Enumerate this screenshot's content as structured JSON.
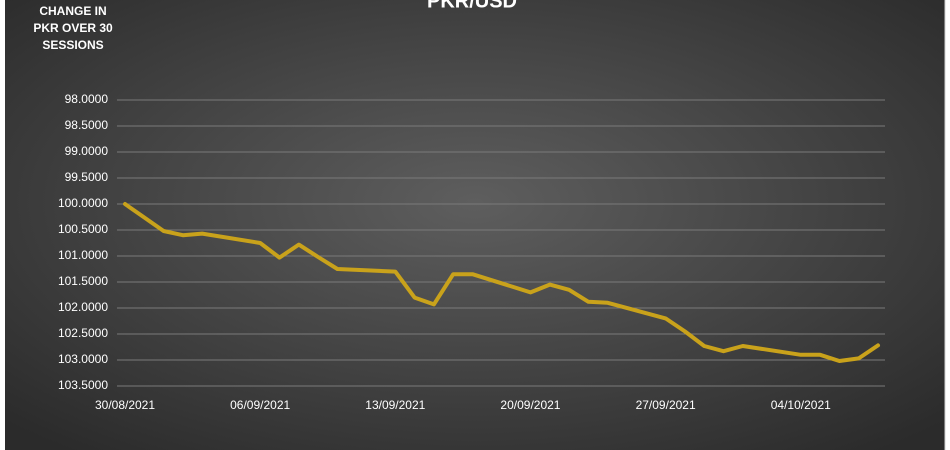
{
  "chart_data": {
    "type": "line",
    "title": "PKR/USD",
    "y_label": "CHANGE IN PKR OVER 30 SESSIONS",
    "x": [
      "30/08/2021",
      "31/08/2021",
      "01/09/2021",
      "02/09/2021",
      "03/09/2021",
      "06/09/2021",
      "07/09/2021",
      "08/09/2021",
      "09/09/2021",
      "10/09/2021",
      "13/09/2021",
      "14/09/2021",
      "15/09/2021",
      "16/09/2021",
      "17/09/2021",
      "20/09/2021",
      "21/09/2021",
      "22/09/2021",
      "23/09/2021",
      "24/09/2021",
      "27/09/2021",
      "28/09/2021",
      "29/09/2021",
      "30/09/2021",
      "01/10/2021",
      "04/10/2021",
      "05/10/2021",
      "06/10/2021",
      "07/10/2021",
      "08/10/2021"
    ],
    "values": [
      100.0,
      100.26,
      100.52,
      100.6,
      100.57,
      100.75,
      101.03,
      100.78,
      101.02,
      101.25,
      101.3,
      101.8,
      101.93,
      101.35,
      101.35,
      101.7,
      101.55,
      101.65,
      101.88,
      101.9,
      102.2,
      102.45,
      102.73,
      102.83,
      102.73,
      102.9,
      102.9,
      103.02,
      102.97,
      102.72
    ],
    "color": "#c9a21b",
    "xlim": [
      "30/08/2021",
      "08/10/2021"
    ],
    "xticks": [
      "30/08/2021",
      "06/09/2021",
      "13/09/2021",
      "20/09/2021",
      "27/09/2021",
      "04/10/2021"
    ],
    "ylim": [
      98,
      103.5
    ],
    "y_reversed": true,
    "yticks": [
      {
        "value": 98,
        "label": "98.0000"
      },
      {
        "value": 98.5,
        "label": "98.5000"
      },
      {
        "value": 99,
        "label": "99.0000"
      },
      {
        "value": 99.5,
        "label": "99.5000"
      },
      {
        "value": 100,
        "label": "100.0000"
      },
      {
        "value": 100.5,
        "label": "100.5000"
      },
      {
        "value": 101,
        "label": "101.0000"
      },
      {
        "value": 101.5,
        "label": "101.5000"
      },
      {
        "value": 102,
        "label": "102.0000"
      },
      {
        "value": 102.5,
        "label": "102.5000"
      },
      {
        "value": 103,
        "label": "103.0000"
      },
      {
        "value": 103.5,
        "label": "103.5000"
      }
    ],
    "grid": true
  }
}
